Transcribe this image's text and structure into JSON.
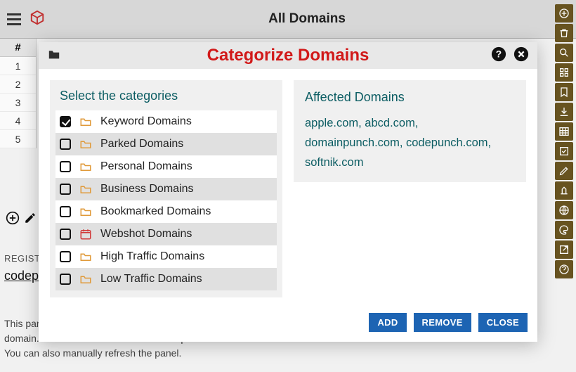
{
  "header": {
    "title": "All Domains"
  },
  "row_header": "#",
  "row_numbers": [
    "1",
    "2",
    "3",
    "4",
    "5"
  ],
  "bg": {
    "registrar_label": "REGISTRAR",
    "domain": "codepunch.com",
    "hint": "This panel shows quick information about the selected domain. Click on a domain in the list to update the data here. You can also manually refresh the panel."
  },
  "modal": {
    "title": "Categorize Domains",
    "select_heading": "Select the categories",
    "categories": [
      {
        "label": "Keyword Domains",
        "checked": true,
        "icon": "folder"
      },
      {
        "label": "Parked Domains",
        "checked": false,
        "icon": "folder"
      },
      {
        "label": "Personal Domains",
        "checked": false,
        "icon": "folder"
      },
      {
        "label": "Business Domains",
        "checked": false,
        "icon": "folder"
      },
      {
        "label": "Bookmarked Domains",
        "checked": false,
        "icon": "folder"
      },
      {
        "label": "Webshot Domains",
        "checked": false,
        "icon": "calendar"
      },
      {
        "label": "High Traffic Domains",
        "checked": false,
        "icon": "folder"
      },
      {
        "label": "Low Traffic Domains",
        "checked": false,
        "icon": "folder"
      }
    ],
    "affected_heading": "Affected Domains",
    "affected_domains": [
      "apple.com",
      "abcd.com",
      "domainpunch.com",
      "codepunch.com",
      "softnik.com"
    ],
    "buttons": {
      "add": "ADD",
      "remove": "REMOVE",
      "close": "CLOSE"
    }
  },
  "rail_icons": [
    "plus-circle",
    "trash",
    "search",
    "grid",
    "bookmark",
    "download",
    "table",
    "checkbox",
    "pencil",
    "service",
    "globe",
    "palette",
    "external",
    "help-circle"
  ],
  "colors": {
    "modal_title": "#d11919",
    "teal": "#0c5d63",
    "btn": "#1d64b3",
    "rail": "#6a5521"
  }
}
